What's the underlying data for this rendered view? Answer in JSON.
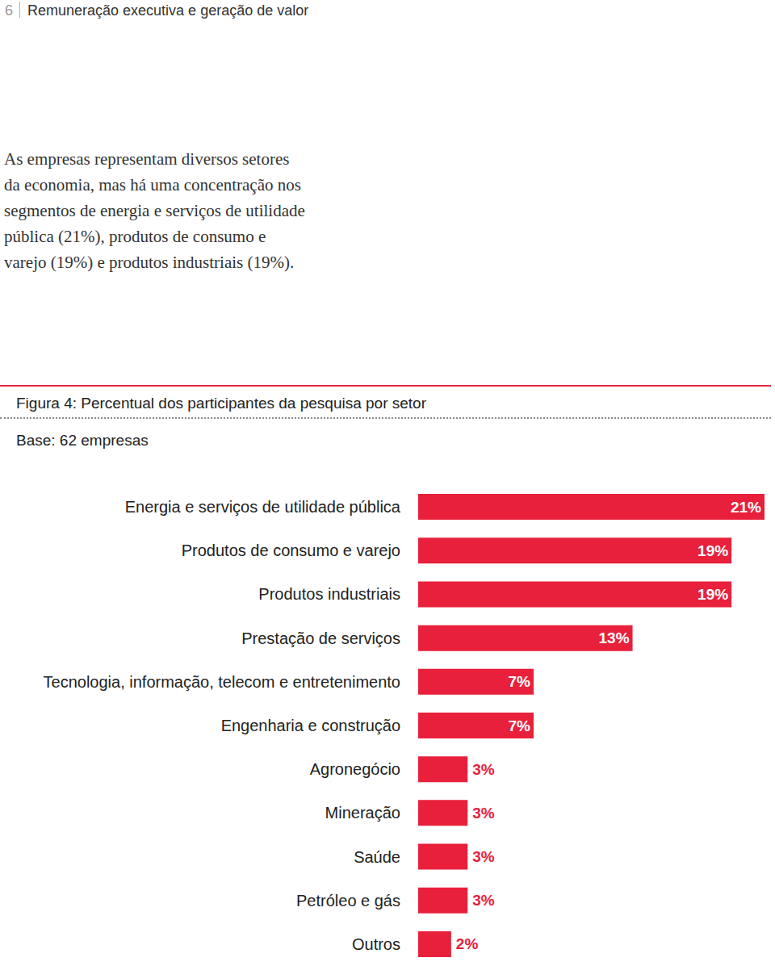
{
  "page": {
    "number": "6",
    "header": "Remuneração executiva e geração de valor",
    "paragraph_lines": [
      "As empresas representam diversos setores",
      "da economia, mas há uma concentração nos",
      "segmentos de energia e serviços de utilidade",
      "pública (21%), produtos de consumo e",
      "varejo (19%) e produtos industriais (19%)."
    ]
  },
  "chart_data": {
    "type": "bar",
    "orientation": "horizontal",
    "title": "Figura 4: Percentual dos participantes da pesquisa por setor",
    "subtitle": "Base: 62 empresas",
    "categories": [
      "Energia e serviços de utilidade pública",
      "Produtos de consumo e varejo",
      "Produtos industriais",
      "Prestação de serviços",
      "Tecnologia, informação, telecom e entretenimento",
      "Engenharia e construção",
      "Agronegócio",
      "Mineração",
      "Saúde",
      "Petróleo e gás",
      "Outros"
    ],
    "values": [
      21,
      19,
      19,
      13,
      7,
      7,
      3,
      3,
      3,
      3,
      2
    ],
    "value_labels": [
      "21%",
      "19%",
      "19%",
      "13%",
      "7%",
      "7%",
      "3%",
      "3%",
      "3%",
      "3%",
      "2%"
    ],
    "color": "#e8203c",
    "xlim": [
      0,
      21
    ],
    "data_labels": true,
    "tick_labels": "y",
    "grid": false
  }
}
